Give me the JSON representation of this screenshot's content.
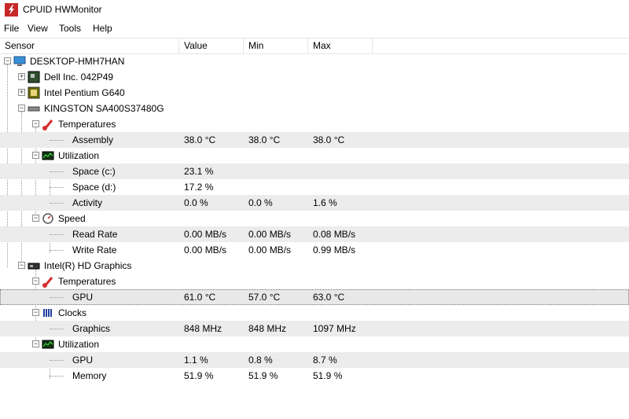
{
  "window": {
    "title": "CPUID HWMonitor"
  },
  "menu": [
    {
      "label": "File"
    },
    {
      "label": "View"
    },
    {
      "label": "Tools"
    },
    {
      "label": "Help"
    }
  ],
  "columns": {
    "sensor": "Sensor",
    "value": "Value",
    "min": "Min",
    "max": "Max"
  },
  "tree": {
    "root": "DESKTOP-HMH7HAN",
    "dell": "Dell Inc. 042P49",
    "cpu": "Intel Pentium G640",
    "ssd": {
      "name": "KINGSTON SA400S37480G",
      "temperatures": "Temperatures",
      "assembly": {
        "name": "Assembly",
        "value": "38.0 °C",
        "min": "38.0 °C",
        "max": "38.0 °C"
      },
      "utilization": "Utilization",
      "space_c": {
        "name": "Space (c:)",
        "value": "23.1 %"
      },
      "space_d": {
        "name": "Space (d:)",
        "value": "17.2 %"
      },
      "activity": {
        "name": "Activity",
        "value": "0.0 %",
        "min": "0.0 %",
        "max": "1.6 %"
      },
      "speed": "Speed",
      "read_rate": {
        "name": "Read Rate",
        "value": "0.00 MB/s",
        "min": "0.00 MB/s",
        "max": "0.08 MB/s"
      },
      "write_rate": {
        "name": "Write Rate",
        "value": "0.00 MB/s",
        "min": "0.00 MB/s",
        "max": "0.99 MB/s"
      }
    },
    "gpu": {
      "name": "Intel(R) HD Graphics",
      "temperatures": "Temperatures",
      "gpu_temp": {
        "name": "GPU",
        "value": "61.0 °C",
        "min": "57.0 °C",
        "max": "63.0 °C"
      },
      "clocks": "Clocks",
      "graphics": {
        "name": "Graphics",
        "value": "848 MHz",
        "min": "848 MHz",
        "max": "1097 MHz"
      },
      "utilization": "Utilization",
      "gpu_util": {
        "name": "GPU",
        "value": "1.1 %",
        "min": "0.8 %",
        "max": "8.7 %"
      },
      "memory": {
        "name": "Memory",
        "value": "51.9 %",
        "min": "51.9 %",
        "max": "51.9 %"
      }
    }
  }
}
